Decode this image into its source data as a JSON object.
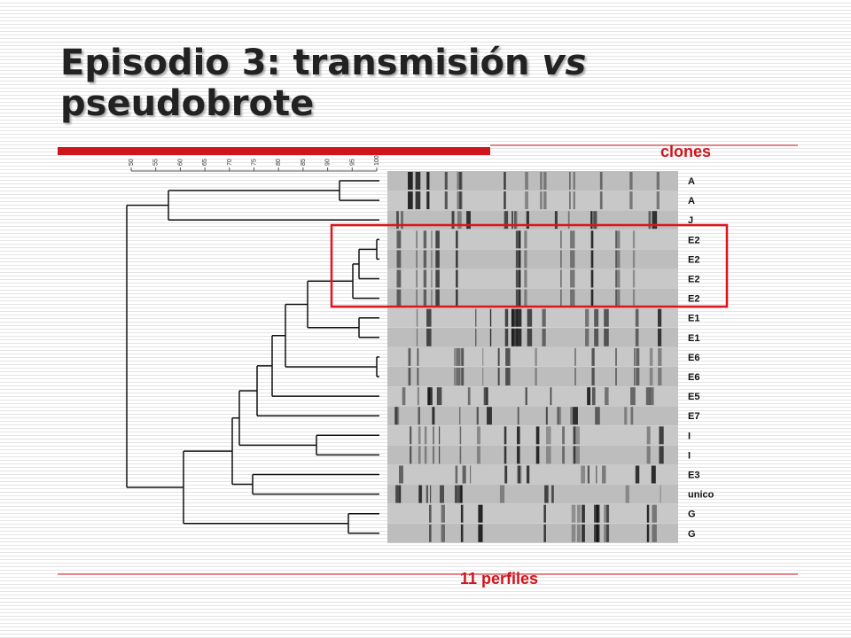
{
  "title": {
    "main": "Episodio 3: transmisión",
    "italic": "vs",
    "second_line": "pseudobrote"
  },
  "clones_label": "clones",
  "scale": {
    "ticks": [
      50,
      55,
      60,
      65,
      70,
      75,
      80,
      85,
      90,
      95,
      100
    ]
  },
  "rows": [
    "A",
    "A",
    "J",
    "E2",
    "E2",
    "E2",
    "E2",
    "E1",
    "E1",
    "E6",
    "E6",
    "E5",
    "E7",
    "I",
    "I",
    "E3",
    "unico",
    "G",
    "G"
  ],
  "footer": "11 perfiles"
}
